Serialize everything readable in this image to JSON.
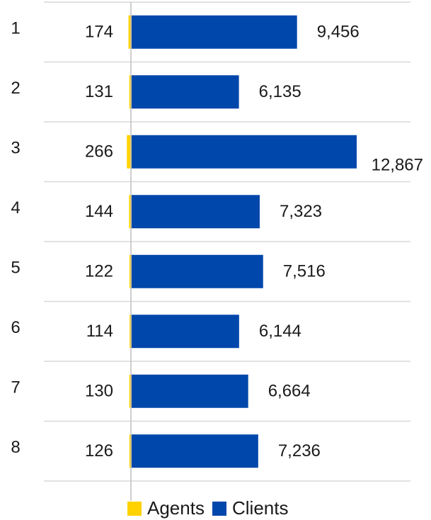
{
  "chart_data": {
    "type": "bar",
    "orientation": "horizontal",
    "stacked": true,
    "categories": [
      "1",
      "2",
      "3",
      "4",
      "5",
      "6",
      "7",
      "8"
    ],
    "series": [
      {
        "name": "Agents",
        "color": "#FFD200",
        "values": [
          174,
          131,
          266,
          144,
          122,
          114,
          130,
          126
        ]
      },
      {
        "name": "Clients",
        "color": "#0047AB",
        "values": [
          9456,
          6135,
          12867,
          7323,
          7516,
          6144,
          6664,
          7236
        ]
      }
    ],
    "value_labels": {
      "agents": [
        "174",
        "131",
        "266",
        "144",
        "122",
        "114",
        "130",
        "126"
      ],
      "clients": [
        "9,456",
        "6,135",
        "12,867",
        "7,323",
        "7,516",
        "6,144",
        "6,664",
        "7,236"
      ]
    },
    "legend": {
      "position": "bottom",
      "items": [
        {
          "label": "Agents",
          "color": "#FFD200"
        },
        {
          "label": "Clients",
          "color": "#0047AB"
        }
      ]
    },
    "gridlines": true,
    "gridline_color": "#d9d9d9",
    "axis_line_color": "#bfbfbf"
  }
}
